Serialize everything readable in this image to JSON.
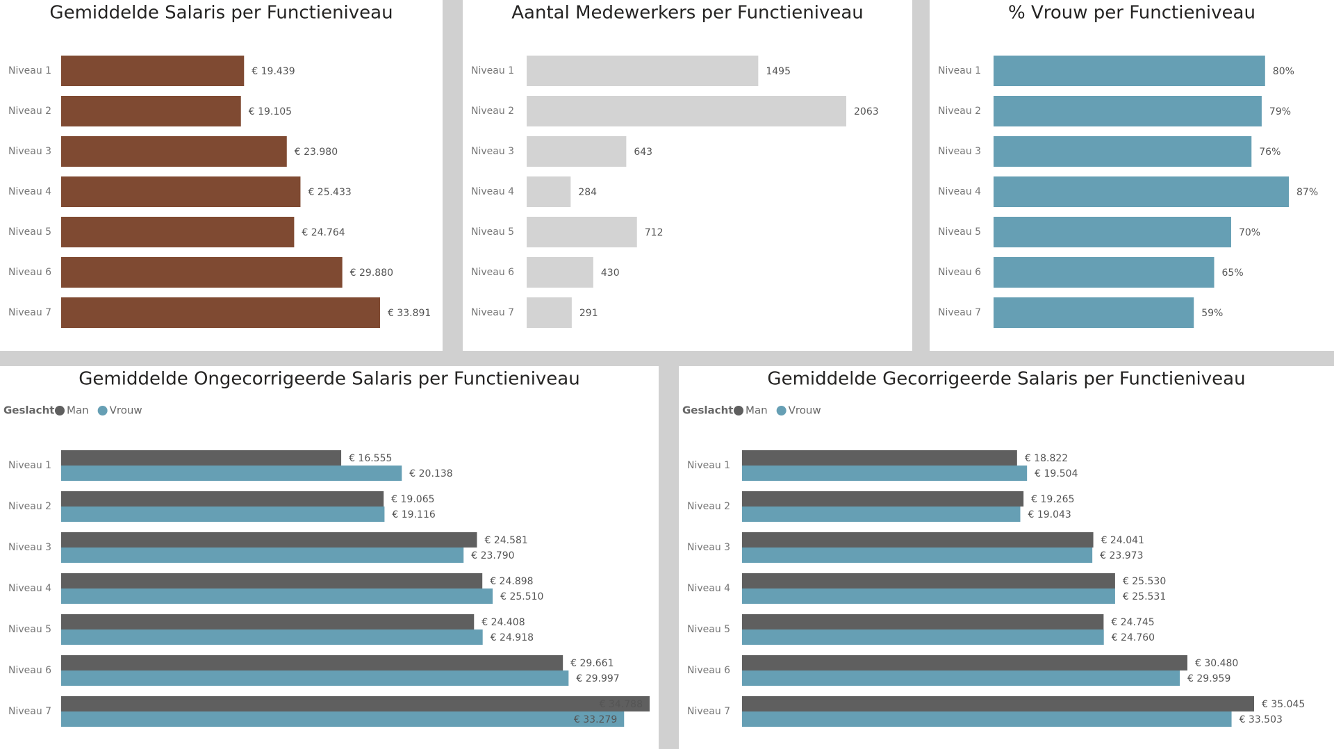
{
  "chart_data": [
    {
      "type": "bar",
      "title": "Gemiddelde Salaris per Functieniveau",
      "categories": [
        "Niveau 1",
        "Niveau 2",
        "Niveau 3",
        "Niveau 4",
        "Niveau 5",
        "Niveau 6",
        "Niveau 7"
      ],
      "values": [
        19439,
        19105,
        23980,
        25433,
        24764,
        29880,
        33891
      ],
      "value_labels": [
        "€ 19.439",
        "€ 19.105",
        "€ 23.980",
        "€ 25.433",
        "€ 24.764",
        "€ 29.880",
        "€ 33.891"
      ],
      "color": "#7f4a32"
    },
    {
      "type": "bar",
      "title": "Aantal Medewerkers per Functieniveau",
      "categories": [
        "Niveau 1",
        "Niveau 2",
        "Niveau 3",
        "Niveau 4",
        "Niveau 5",
        "Niveau 6",
        "Niveau 7"
      ],
      "values": [
        1495,
        2063,
        643,
        284,
        712,
        430,
        291
      ],
      "color": "#d3d3d3"
    },
    {
      "type": "bar",
      "title": "% Vrouw per Functieniveau",
      "categories": [
        "Niveau 1",
        "Niveau 2",
        "Niveau 3",
        "Niveau 4",
        "Niveau 5",
        "Niveau 6",
        "Niveau 7"
      ],
      "values": [
        80,
        79,
        76,
        87,
        70,
        65,
        59
      ],
      "value_labels": [
        "80%",
        "79%",
        "76%",
        "87%",
        "70%",
        "65%",
        "59%"
      ],
      "color": "#669fb4"
    },
    {
      "type": "grouped-bar",
      "title": "Gemiddelde Ongecorrigeerde Salaris per Functieniveau",
      "legend_title": "Geslacht",
      "categories": [
        "Niveau 1",
        "Niveau 2",
        "Niveau 3",
        "Niveau 4",
        "Niveau 5",
        "Niveau 6",
        "Niveau 7"
      ],
      "series": [
        {
          "name": "Man",
          "color": "#5f5f5f",
          "values": [
            16555,
            19065,
            24581,
            24898,
            24408,
            29661,
            34788
          ],
          "value_labels": [
            "€ 16.555",
            "€ 19.065",
            "€ 24.581",
            "€ 24.898",
            "€ 24.408",
            "€ 29.661",
            "€ 34.788"
          ]
        },
        {
          "name": "Vrouw",
          "color": "#669fb4",
          "values": [
            20138,
            19116,
            23790,
            25510,
            24918,
            29997,
            33279
          ],
          "value_labels": [
            "€ 20.138",
            "€ 19.116",
            "€ 23.790",
            "€ 25.510",
            "€ 24.918",
            "€ 29.997",
            "€ 33.279"
          ]
        }
      ]
    },
    {
      "type": "grouped-bar",
      "title": "Gemiddelde Gecorrigeerde Salaris per Functieniveau",
      "legend_title": "Geslacht",
      "categories": [
        "Niveau 1",
        "Niveau 2",
        "Niveau 3",
        "Niveau 4",
        "Niveau 5",
        "Niveau 6",
        "Niveau 7"
      ],
      "series": [
        {
          "name": "Man",
          "color": "#5f5f5f",
          "values": [
            18822,
            19265,
            24041,
            25530,
            24745,
            30480,
            35045
          ],
          "value_labels": [
            "€ 18.822",
            "€ 19.265",
            "€ 24.041",
            "€ 25.530",
            "€ 24.745",
            "€ 30.480",
            "€ 35.045"
          ]
        },
        {
          "name": "Vrouw",
          "color": "#669fb4",
          "values": [
            19504,
            19043,
            23973,
            25531,
            24760,
            29959,
            33503
          ],
          "value_labels": [
            "€ 19.504",
            "€ 19.043",
            "€ 23.973",
            "€ 25.531",
            "€ 24.760",
            "€ 29.959",
            "€ 33.503"
          ]
        }
      ]
    }
  ]
}
